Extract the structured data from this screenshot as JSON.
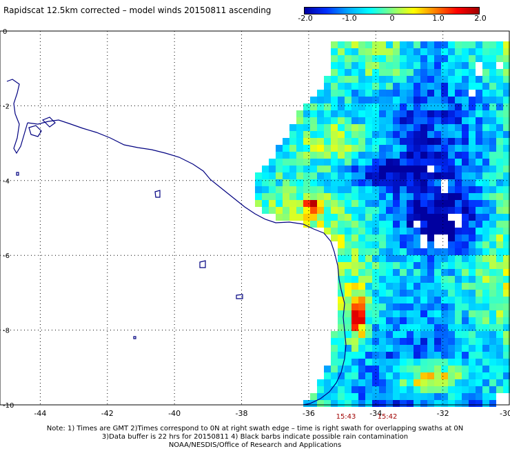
{
  "title": "Rapidscat 12.5km corrected – model winds 20150811 ascending",
  "colorbar": {
    "labels": [
      "-2.0",
      "-1.0",
      "0",
      "1.0",
      "2.0"
    ],
    "stops": [
      "#0000a0",
      "#0030ff",
      "#00a8ff",
      "#00ffff",
      "#80ff80",
      "#ffff00",
      "#ff8000",
      "#ff0000",
      "#a00000"
    ]
  },
  "axes": {
    "x_ticks": [
      "-44",
      "-42",
      "-40",
      "-38",
      "-36",
      "-34",
      "-32",
      "-30"
    ],
    "y_ticks": [
      "0",
      "-2",
      "-4",
      "-6",
      "-8",
      "-10"
    ],
    "lon_range": [
      -45.2,
      -30
    ],
    "lat_range": [
      -10,
      0
    ]
  },
  "pass_times": [
    "15:43",
    "15:42"
  ],
  "notes": [
    "Note: 1) Times are GMT 2)Times correspond to 0N at right swath edge – time is right swath for overlapping swaths at 0N",
    "3)Data buffer is 22 hrs for 20150811 4) Black barbs indicate possible rain contamination",
    "NOAA/NESDIS/Office of Research and Applications"
  ],
  "colors": {
    "coastline": "#000080",
    "grid": "#000000",
    "time_label": "#a00000"
  }
}
